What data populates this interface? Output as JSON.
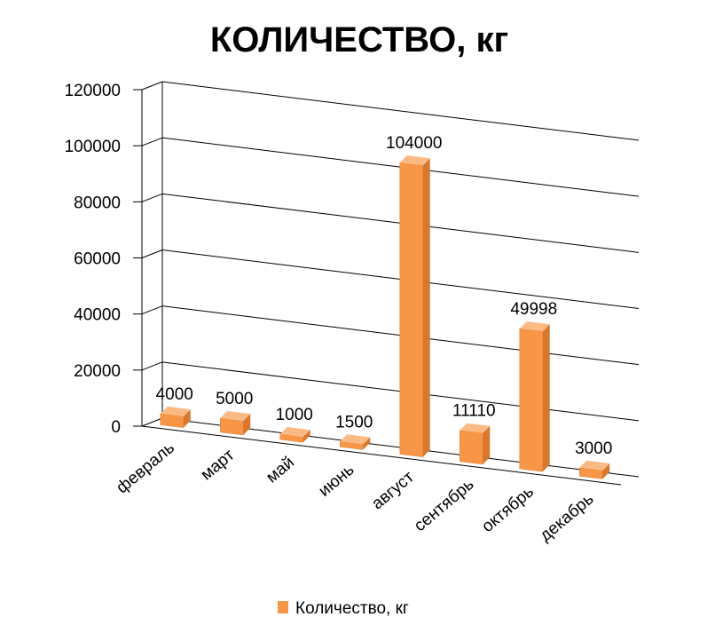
{
  "chart_data": {
    "type": "bar",
    "title": "КОЛИЧЕСТВО, кг",
    "categories": [
      "февраль",
      "март",
      "май",
      "июнь",
      "август",
      "сентябрь",
      "октябрь",
      "декабрь"
    ],
    "series": [
      {
        "name": "Количество, кг",
        "values": [
          4000,
          5000,
          1000,
          1500,
          104000,
          11110,
          49998,
          3000
        ]
      }
    ],
    "ylim": [
      0,
      120000
    ],
    "yticks": [
      "0",
      "20000",
      "40000",
      "60000",
      "80000",
      "100000",
      "120000"
    ],
    "grid": true,
    "legend": "bottom",
    "colors": {
      "bar_front": "#F79646",
      "bar_side": "#D8782E",
      "bar_top": "#FBB983",
      "grid": "#000000"
    }
  }
}
